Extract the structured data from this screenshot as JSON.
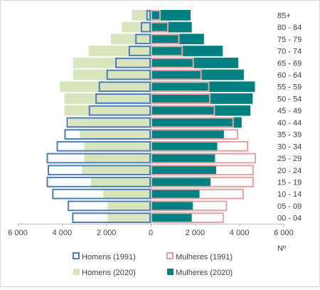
{
  "chart_data": {
    "type": "bar",
    "orientation": "horizontal",
    "layout": "population-pyramid",
    "categories": [
      "00 - 04",
      "05 - 09",
      "10 - 14",
      "15 - 19",
      "20 - 24",
      "25 - 29",
      "30 - 34",
      "35 - 39",
      "40 - 44",
      "45 - 49",
      "50 - 54",
      "55 - 59",
      "60 - 64",
      "65 - 69",
      "70 - 74",
      "75 - 79",
      "80 - 84",
      "85+"
    ],
    "series": [
      {
        "name": "Homens (2020)",
        "side": "left",
        "style": "filled",
        "color": "#d8e4bc",
        "values": [
          1950,
          1950,
          2150,
          2700,
          3100,
          3000,
          3000,
          3200,
          3700,
          3900,
          3900,
          4100,
          3500,
          3500,
          2800,
          1800,
          1300,
          850
        ]
      },
      {
        "name": "Mulheres (2020)",
        "side": "right",
        "style": "filled",
        "color": "#008080",
        "values": [
          1850,
          1900,
          2200,
          2700,
          2950,
          2900,
          3000,
          3300,
          4100,
          4500,
          4600,
          4700,
          4200,
          3950,
          3250,
          2400,
          1850,
          1800
        ]
      },
      {
        "name": "Homens (1991)",
        "side": "left",
        "style": "outline",
        "color": "#4a7ebb",
        "values": [
          3550,
          3750,
          4450,
          4700,
          4650,
          4700,
          4250,
          3900,
          3800,
          2800,
          2500,
          2350,
          2000,
          1600,
          1000,
          700,
          450,
          200
        ]
      },
      {
        "name": "Mulheres (1991)",
        "side": "right",
        "style": "outline",
        "color": "#e6a0a0",
        "values": [
          3300,
          3450,
          4200,
          4650,
          4650,
          4750,
          4400,
          3950,
          3750,
          2900,
          2700,
          2650,
          2300,
          1950,
          1450,
          1300,
          800,
          450
        ]
      }
    ],
    "xlim": [
      -6000,
      6000
    ],
    "xticks": [
      -6000,
      -4000,
      -2000,
      0,
      2000,
      4000,
      6000
    ],
    "xtick_labels": [
      "6 000",
      "4 000",
      "2 000",
      "0",
      "2 000",
      "4 000",
      "6 000"
    ],
    "xlabel": "Nº",
    "grid": false,
    "legend_position": "bottom"
  },
  "legend": {
    "homens_1991": "Homens (1991)",
    "mulheres_1991": "Mulheres (1991)",
    "homens_2020": "Homens (2020)",
    "mulheres_2020": "Mulheres (2020)"
  }
}
